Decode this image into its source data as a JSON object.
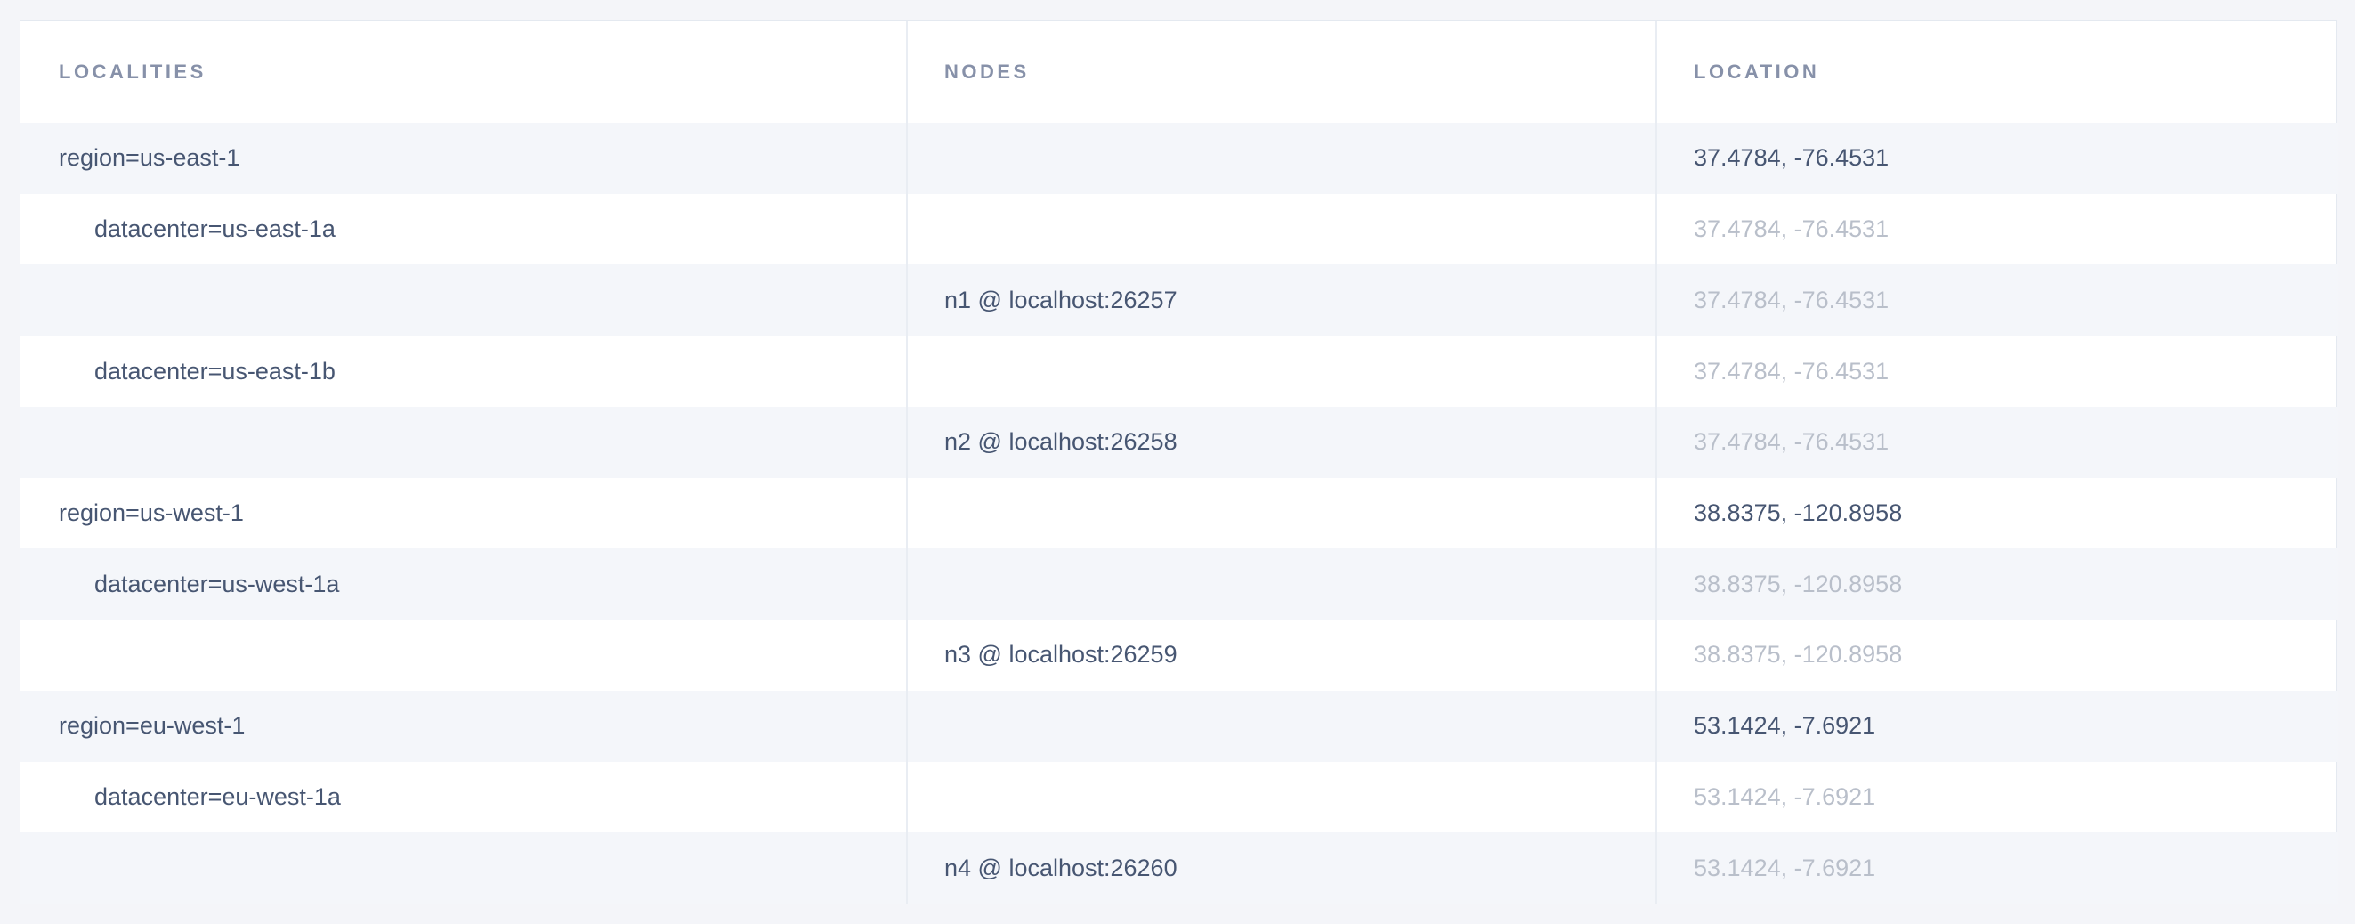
{
  "page": {
    "background_color": "#f4f5f9"
  },
  "table": {
    "columns": [
      {
        "key": "localities",
        "label": "LOCALITIES"
      },
      {
        "key": "nodes",
        "label": "NODES"
      },
      {
        "key": "location",
        "label": "LOCATION"
      }
    ],
    "rows": [
      {
        "level": "region",
        "locality": "region=us-east-1",
        "node": "",
        "location": "37.4784, -76.4531",
        "location_muted": false
      },
      {
        "level": "datacenter",
        "locality": "datacenter=us-east-1a",
        "node": "",
        "location": "37.4784, -76.4531",
        "location_muted": true
      },
      {
        "level": "node",
        "locality": "",
        "node": "n1 @ localhost:26257",
        "location": "37.4784, -76.4531",
        "location_muted": true
      },
      {
        "level": "datacenter",
        "locality": "datacenter=us-east-1b",
        "node": "",
        "location": "37.4784, -76.4531",
        "location_muted": true
      },
      {
        "level": "node",
        "locality": "",
        "node": "n2 @ localhost:26258",
        "location": "37.4784, -76.4531",
        "location_muted": true
      },
      {
        "level": "region",
        "locality": "region=us-west-1",
        "node": "",
        "location": "38.8375, -120.8958",
        "location_muted": false
      },
      {
        "level": "datacenter",
        "locality": "datacenter=us-west-1a",
        "node": "",
        "location": "38.8375, -120.8958",
        "location_muted": true
      },
      {
        "level": "node",
        "locality": "",
        "node": "n3 @ localhost:26259",
        "location": "38.8375, -120.8958",
        "location_muted": true
      },
      {
        "level": "region",
        "locality": "region=eu-west-1",
        "node": "",
        "location": "53.1424, -7.6921",
        "location_muted": false
      },
      {
        "level": "datacenter",
        "locality": "datacenter=eu-west-1a",
        "node": "",
        "location": "53.1424, -7.6921",
        "location_muted": true
      },
      {
        "level": "node",
        "locality": "",
        "node": "n4 @ localhost:26260",
        "location": "53.1424, -7.6921",
        "location_muted": true
      }
    ],
    "colors": {
      "row_stripe": "#f4f6fa",
      "card_border": "#e4e9f0",
      "column_separator": "#e9edf3",
      "header_text": "#8791a9",
      "body_text": "#475672",
      "muted_text": "#b9bfca"
    }
  }
}
